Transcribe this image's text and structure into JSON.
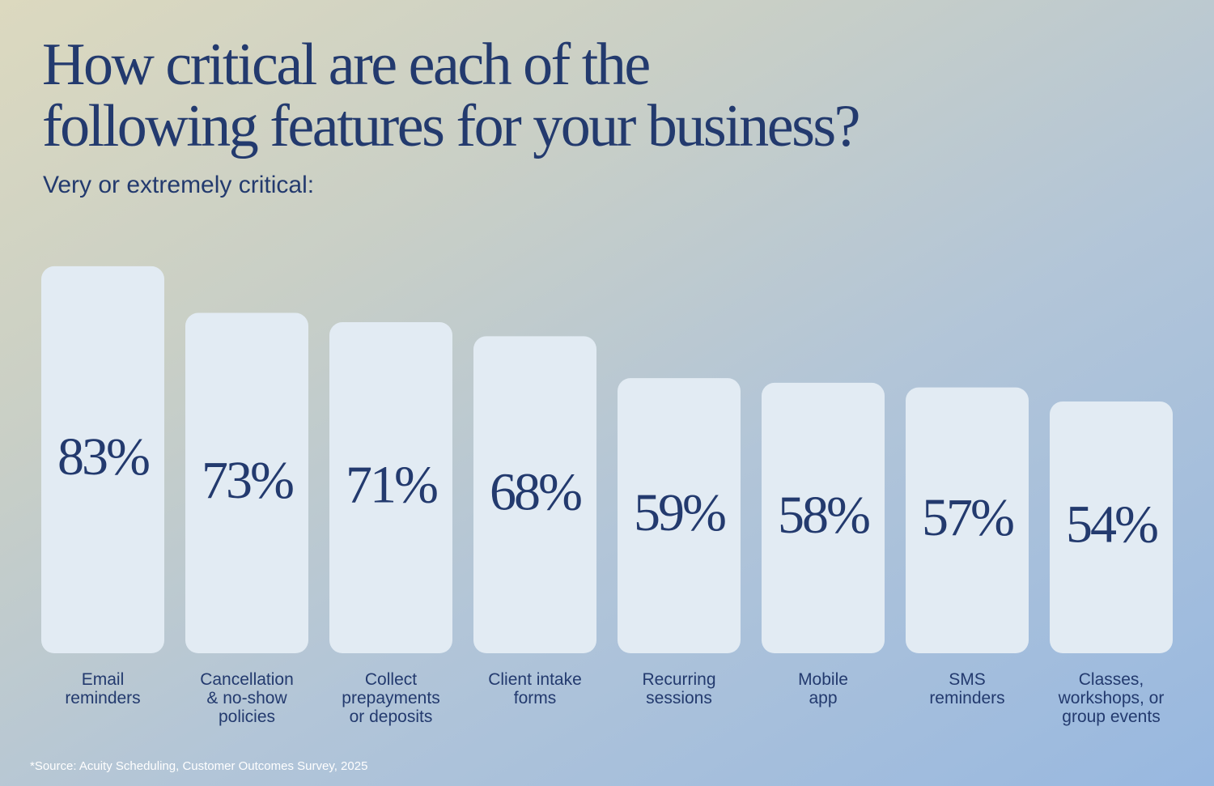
{
  "chart_data": {
    "type": "bar",
    "title": "How critical are each of the\nfollowing features for your business?",
    "subtitle": "Very or extremely critical:",
    "categories": [
      "Email\nreminders",
      "Cancellation\n& no-show\npolicies",
      "Collect\nprepayments\nor deposits",
      "Client intake\nforms",
      "Recurring\nsessions",
      "Mobile\napp",
      "SMS\nreminders",
      "Classes,\nworkshops, or\ngroup events"
    ],
    "values": [
      83,
      73,
      71,
      68,
      59,
      58,
      57,
      54
    ],
    "value_labels": [
      "83%",
      "73%",
      "71%",
      "68%",
      "59%",
      "58%",
      "57%",
      "54%"
    ],
    "color": "#e2ebf3",
    "ylim": [
      0,
      100
    ],
    "source": "*Source: Acuity Scheduling, Customer Outcomes Survey, 2025"
  }
}
